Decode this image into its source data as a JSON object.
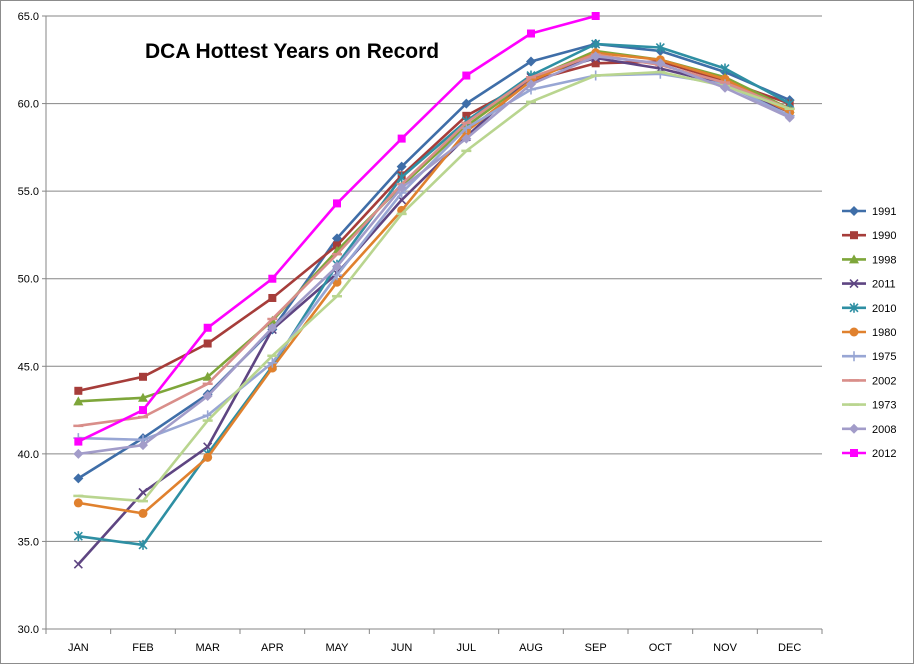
{
  "chart_data": {
    "type": "line",
    "title": "DCA Hottest Years on Record",
    "xlabel": "",
    "ylabel": "",
    "categories": [
      "JAN",
      "FEB",
      "MAR",
      "APR",
      "MAY",
      "JUN",
      "JUL",
      "AUG",
      "SEP",
      "OCT",
      "NOV",
      "DEC"
    ],
    "ylim": [
      30.0,
      65.0
    ],
    "y_ticks": [
      "30.0",
      "35.0",
      "40.0",
      "45.0",
      "50.0",
      "55.0",
      "60.0",
      "65.0"
    ],
    "grid": "horizontal",
    "legend_position": "right",
    "series": [
      {
        "name": "1991",
        "color": "#3F6EA8",
        "marker": "diamond",
        "values": [
          38.6,
          40.9,
          43.4,
          47.1,
          52.3,
          56.4,
          60.0,
          62.4,
          63.4,
          63.0,
          61.8,
          60.2
        ]
      },
      {
        "name": "1990",
        "color": "#A63D3A",
        "marker": "square",
        "values": [
          43.6,
          44.4,
          46.3,
          48.9,
          51.9,
          55.9,
          59.3,
          61.3,
          62.3,
          62.4,
          61.3,
          60.0
        ]
      },
      {
        "name": "1998",
        "color": "#7EA63A",
        "marker": "triangle",
        "values": [
          43.0,
          43.2,
          44.4,
          47.6,
          51.6,
          55.3,
          58.7,
          61.4,
          63.0,
          62.5,
          61.5,
          59.7
        ]
      },
      {
        "name": "2011",
        "color": "#5E4582",
        "marker": "x",
        "values": [
          33.7,
          37.8,
          40.4,
          47.1,
          50.3,
          54.5,
          58.1,
          61.5,
          62.6,
          62.0,
          61.1,
          59.5
        ]
      },
      {
        "name": "2010",
        "color": "#2E8FA3",
        "marker": "star",
        "values": [
          35.3,
          34.8,
          40.0,
          45.0,
          50.8,
          55.8,
          59.0,
          61.6,
          63.4,
          63.2,
          62.0,
          60.0
        ]
      },
      {
        "name": "1980",
        "color": "#E0812E",
        "marker": "circle",
        "values": [
          37.2,
          36.6,
          39.8,
          44.9,
          49.8,
          53.9,
          58.4,
          61.3,
          62.9,
          62.5,
          61.4,
          59.5
        ]
      },
      {
        "name": "1975",
        "color": "#98A6D4",
        "marker": "plus",
        "values": [
          40.9,
          40.8,
          42.2,
          45.2,
          50.2,
          54.9,
          58.6,
          60.8,
          61.6,
          61.7,
          61.1,
          59.3
        ]
      },
      {
        "name": "2002",
        "color": "#D98E8A",
        "marker": "dash",
        "values": [
          41.6,
          42.1,
          44.0,
          47.7,
          51.4,
          55.4,
          58.9,
          61.5,
          62.8,
          62.2,
          61.2,
          59.7
        ]
      },
      {
        "name": "1973",
        "color": "#B9D58F",
        "marker": "dash",
        "values": [
          37.6,
          37.3,
          41.9,
          45.6,
          49.0,
          53.7,
          57.3,
          60.1,
          61.6,
          61.8,
          61.0,
          59.7
        ]
      },
      {
        "name": "2008",
        "color": "#A29CC9",
        "marker": "diamond",
        "values": [
          40.0,
          40.5,
          43.3,
          47.2,
          50.7,
          55.2,
          58.0,
          61.1,
          62.7,
          62.3,
          60.9,
          59.2
        ]
      },
      {
        "name": "2012",
        "color": "#FF00FF",
        "marker": "square",
        "values": [
          40.7,
          42.5,
          47.2,
          50.0,
          54.3,
          58.0,
          61.6,
          64.0,
          65.0,
          null,
          null,
          null
        ]
      }
    ]
  }
}
